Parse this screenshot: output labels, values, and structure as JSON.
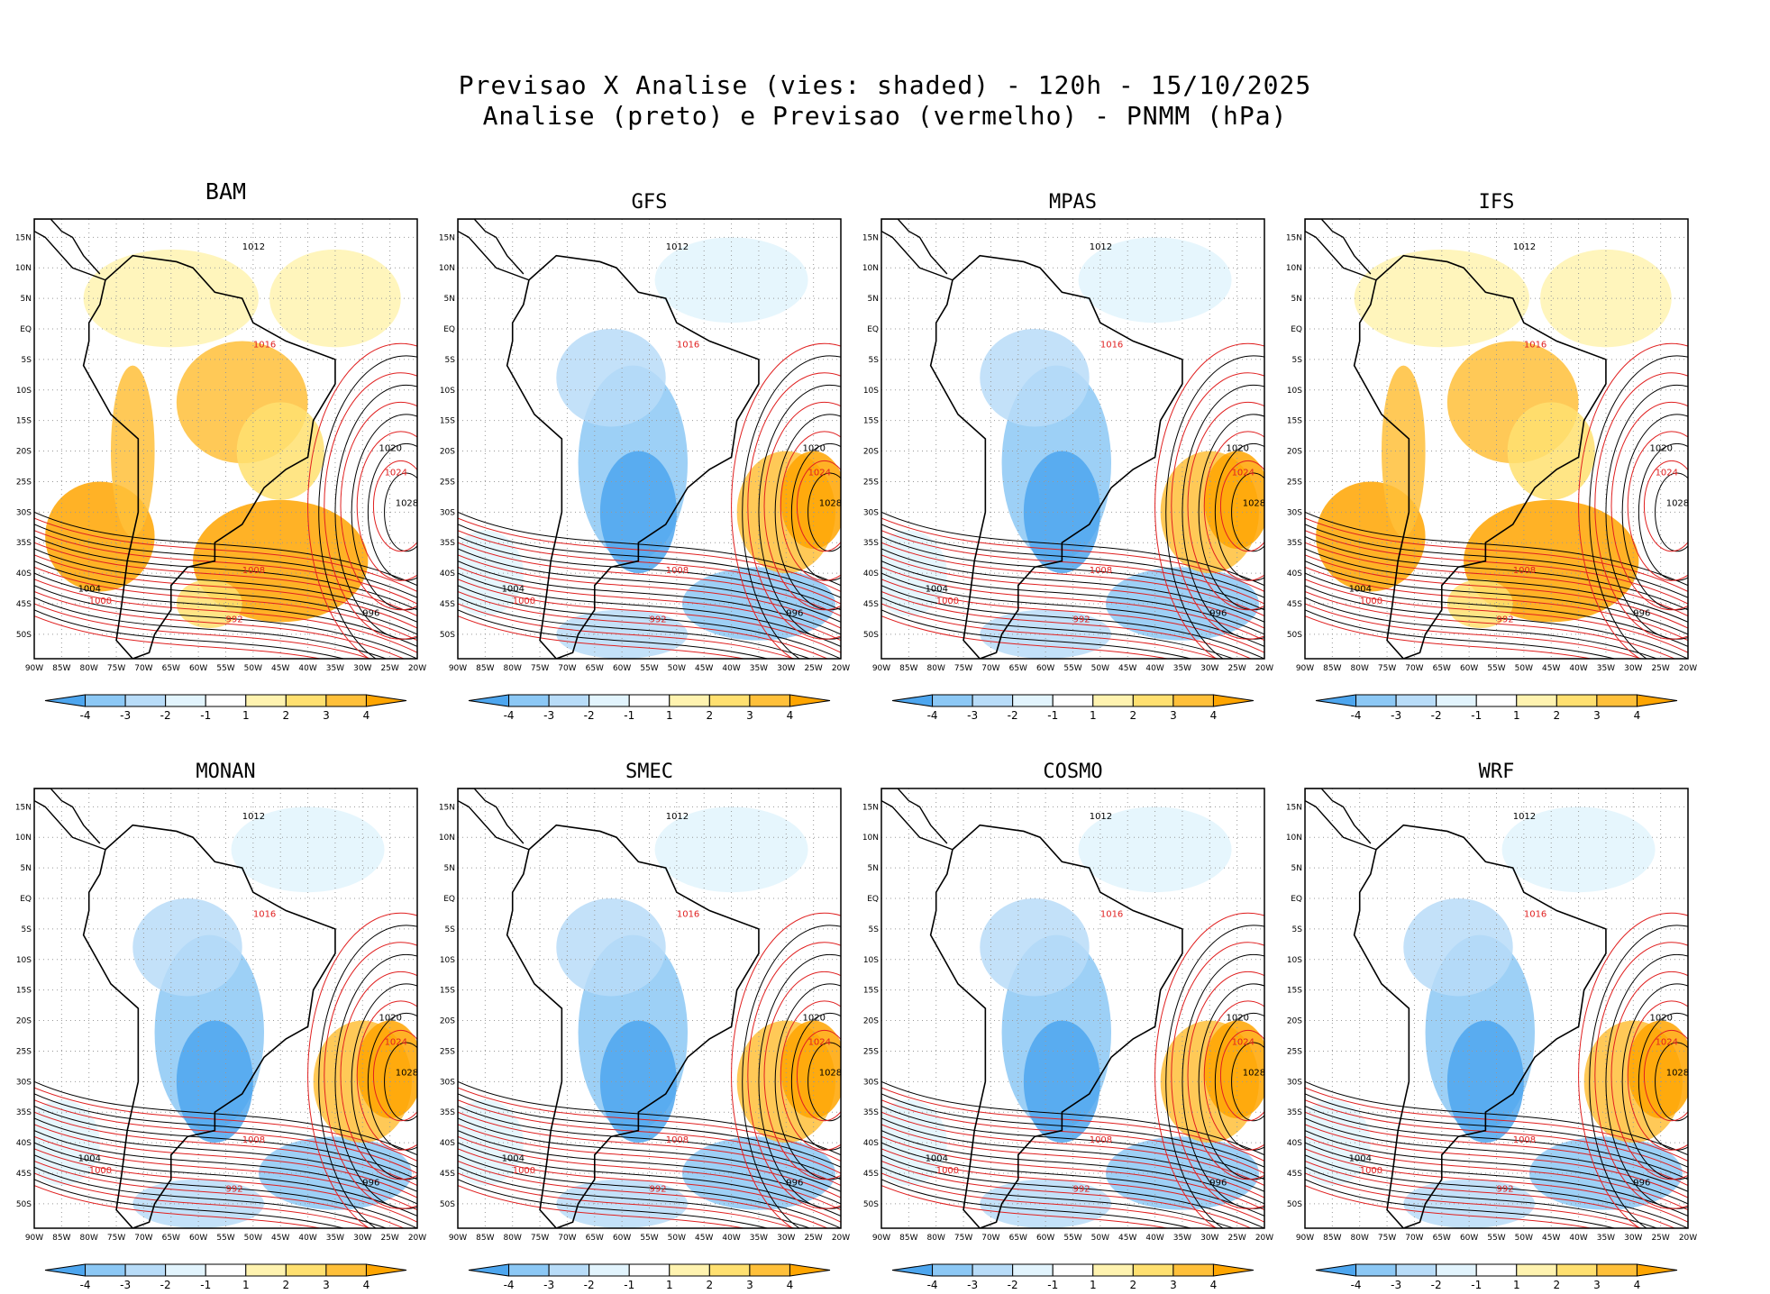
{
  "header": {
    "line1": "Previsao X Analise (vies: shaded) - 120h - 15/10/2025",
    "line2": "Analise (preto) e Previsao (vermelho) - PNMM (hPa)"
  },
  "panels": [
    {
      "name": "BAM",
      "mode": "warm"
    },
    {
      "name": "GFS",
      "mode": "cool"
    },
    {
      "name": "MPAS",
      "mode": "cool"
    },
    {
      "name": "IFS",
      "mode": "warm"
    },
    {
      "name": "MONAN",
      "mode": "cool"
    },
    {
      "name": "SMEC",
      "mode": "cool"
    },
    {
      "name": "COSMO",
      "mode": "cool"
    },
    {
      "name": "WRF",
      "mode": "cool"
    }
  ],
  "axes": {
    "lon_labels": [
      "90W",
      "85W",
      "80W",
      "75W",
      "70W",
      "65W",
      "60W",
      "55W",
      "50W",
      "45W",
      "40W",
      "35W",
      "30W",
      "25W",
      "20W"
    ],
    "lat_labels": [
      "15N",
      "10N",
      "5N",
      "EQ",
      "5S",
      "10S",
      "15S",
      "20S",
      "25S",
      "30S",
      "35S",
      "40S",
      "45S",
      "50S"
    ]
  },
  "colorbar": {
    "labels": [
      "-4",
      "-3",
      "-2",
      "-1",
      "1",
      "2",
      "3",
      "4"
    ],
    "colors": [
      "#4da6ef",
      "#8cc8f5",
      "#b8dcf8",
      "#e2f4fd",
      "#ffffff",
      "#fff3b0",
      "#ffe070",
      "#ffc03a",
      "#ffa500"
    ]
  },
  "contours": {
    "analysis_color": "#000000",
    "forecast_color": "#e02020",
    "labels": [
      "1012",
      "1016",
      "1020",
      "1024",
      "1028",
      "1008",
      "1004",
      "1000",
      "996",
      "992"
    ]
  }
}
